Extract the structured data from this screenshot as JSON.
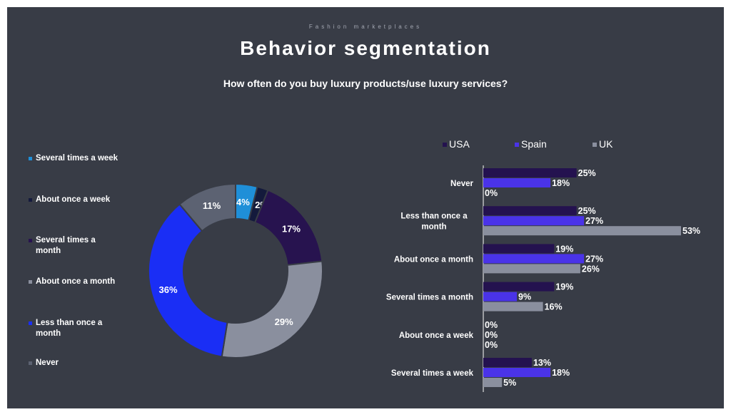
{
  "kicker": "Fashion marketplaces",
  "title": "Behavior segmentation",
  "subtitle": "How often do you buy luxury products/use luxury services?",
  "chart_data": [
    {
      "type": "pie",
      "variant": "donut",
      "categories": [
        "Several times a week",
        "About once a week",
        "Several times a month",
        "About once a month",
        "Less than once a month",
        "Never"
      ],
      "values": [
        4,
        2,
        17,
        29,
        36,
        11
      ],
      "value_suffix": "%",
      "colors": [
        "#1f8fd8",
        "#141a3c",
        "#27134f",
        "#8a8f9e",
        "#1a2ef5",
        "#5c6272"
      ],
      "legend_position": "left",
      "legend_labels": [
        [
          "Several times a week"
        ],
        [
          "About once a week"
        ],
        [
          "Several times a",
          "month"
        ],
        [
          "About once a month"
        ],
        [
          "Less than once a",
          "month"
        ],
        [
          "Never"
        ]
      ]
    },
    {
      "type": "bar",
      "orientation": "horizontal",
      "categories": [
        "Never",
        "Less than once a month",
        "About once a month",
        "Several times a month",
        "About once a week",
        "Several times a week"
      ],
      "category_labels": [
        [
          "Never"
        ],
        [
          "Less than once a",
          "month"
        ],
        [
          "About once a month"
        ],
        [
          "Several times a month"
        ],
        [
          "About once a week"
        ],
        [
          "Several times a week"
        ]
      ],
      "series": [
        {
          "name": "USA",
          "color": "#24124f",
          "values": [
            25,
            25,
            19,
            19,
            0,
            13
          ]
        },
        {
          "name": "Spain",
          "color": "#4a33e8",
          "values": [
            18,
            27,
            27,
            9,
            0,
            18
          ]
        },
        {
          "name": "UK",
          "color": "#8a8f9e",
          "values": [
            0,
            53,
            26,
            16,
            0,
            5
          ]
        }
      ],
      "value_suffix": "%",
      "xlim": [
        0,
        53
      ],
      "legend_position": "top",
      "grid": false
    }
  ]
}
